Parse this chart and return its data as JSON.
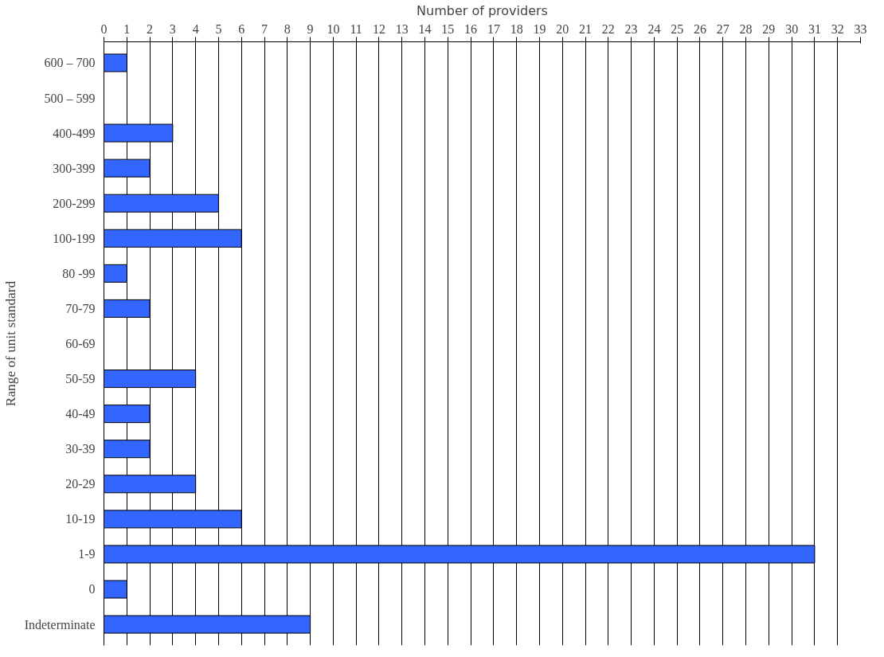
{
  "chart_data": {
    "type": "bar",
    "orientation": "horizontal",
    "xlabel": "Number of providers",
    "ylabel": "Range of unit standard",
    "categories": [
      "600 – 700",
      "500 – 599",
      "400-499",
      "300-399",
      "200-299",
      "100-199",
      "80 -99",
      "70-79",
      "60-69",
      "50-59",
      "40-49",
      "30-39",
      "20-29",
      "10-19",
      "1-9",
      "0",
      "Indeterminate"
    ],
    "values": [
      1,
      0,
      3,
      2,
      5,
      6,
      1,
      2,
      0,
      4,
      2,
      2,
      4,
      6,
      31,
      1,
      9
    ],
    "color": "#3366ff",
    "xlim": [
      0,
      33
    ],
    "xticks": [
      0,
      1,
      2,
      3,
      4,
      5,
      6,
      7,
      8,
      9,
      10,
      11,
      12,
      13,
      14,
      15,
      16,
      17,
      18,
      19,
      20,
      21,
      22,
      23,
      24,
      25,
      26,
      27,
      28,
      29,
      30,
      31,
      32,
      33
    ],
    "grid": "x"
  }
}
